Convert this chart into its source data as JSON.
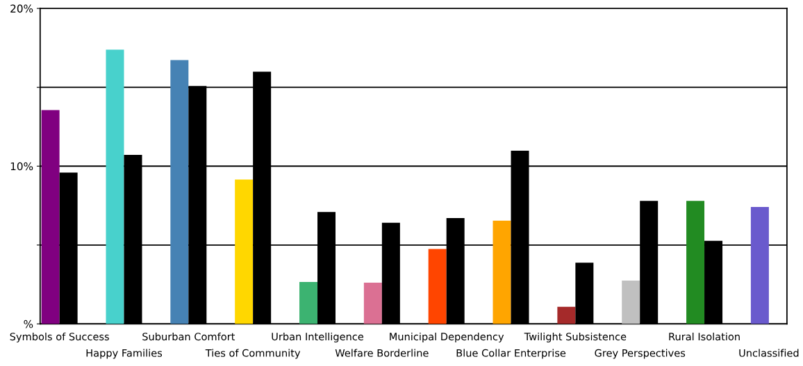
{
  "chart_data": {
    "type": "bar",
    "categories": [
      "Symbols of Success",
      "Happy Families",
      "Suburban Comfort",
      "Ties of Community",
      "Urban Intelligence",
      "Welfare Borderline",
      "Municipal Dependency",
      "Blue Collar Enterprise",
      "Twilight Subsistence",
      "Grey Perspectives",
      "Rural Isolation",
      "Unclassified"
    ],
    "series": [
      {
        "colors": [
          "#800080",
          "#48d1cc",
          "#4682b4",
          "#ffd700",
          "#3cb371",
          "#db7093",
          "#ff4500",
          "#ffa500",
          "#a52a2a",
          "#c0c0c0",
          "#228b22",
          "#6a5acd"
        ],
        "values": [
          13.55,
          17.39,
          16.73,
          9.15,
          2.66,
          2.61,
          4.75,
          6.54,
          1.09,
          2.75,
          7.8,
          7.41
        ]
      },
      {
        "color": "#000000",
        "values": [
          9.59,
          10.72,
          15.08,
          15.99,
          7.1,
          6.41,
          6.71,
          10.98,
          3.88,
          7.8,
          5.27,
          null
        ]
      }
    ],
    "ylim": [
      0,
      20
    ],
    "yticks": [
      {
        "value": 0,
        "label": "%"
      },
      {
        "value": 5,
        "label": null
      },
      {
        "value": 10,
        "label": "10%"
      },
      {
        "value": 15,
        "label": null
      },
      {
        "value": 20,
        "label": "20%"
      }
    ],
    "grid": "y"
  }
}
